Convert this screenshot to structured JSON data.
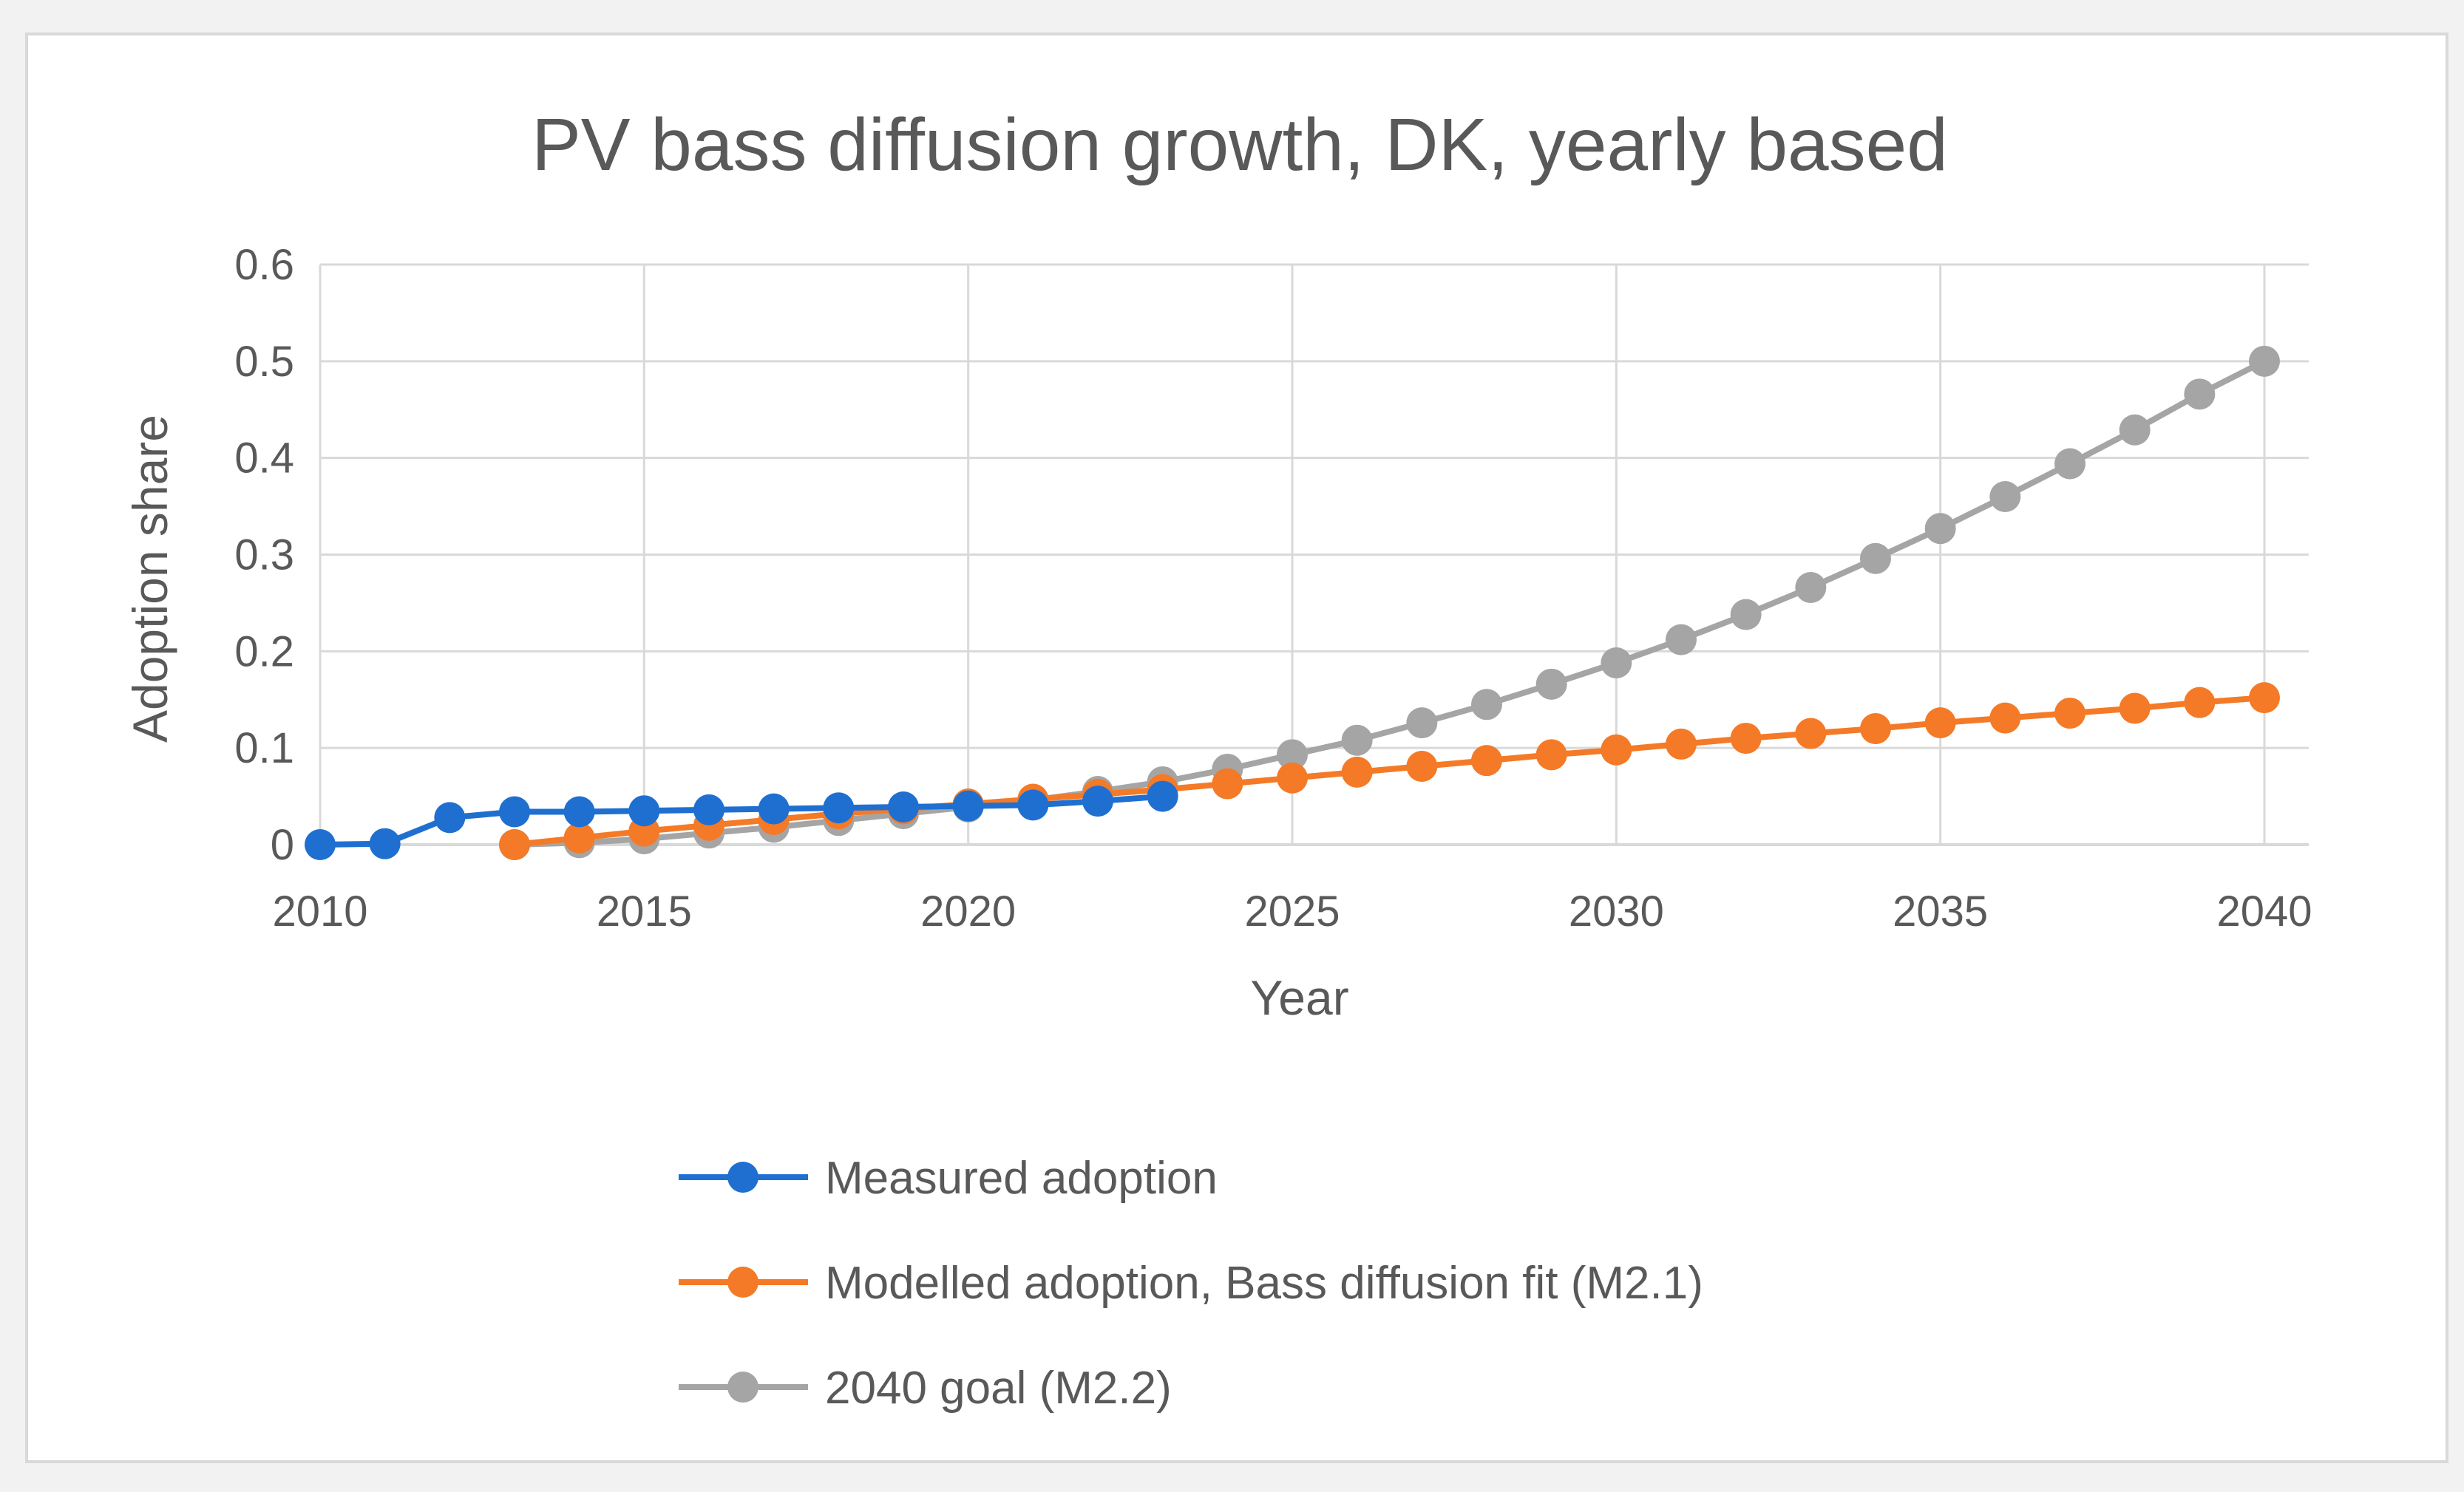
{
  "chart_data": {
    "type": "line",
    "title": "PV bass diffusion growth, DK, yearly based",
    "xlabel": "Year",
    "ylabel": "Adoption share",
    "xlim": [
      2010,
      2040
    ],
    "ylim": [
      0,
      0.6
    ],
    "x_ticks": [
      "2010",
      "2015",
      "2020",
      "2025",
      "2030",
      "2035",
      "2040"
    ],
    "y_ticks": [
      "0",
      "0.1",
      "0.2",
      "0.3",
      "0.4",
      "0.5",
      "0.6"
    ],
    "grid": true,
    "legend_position": "bottom",
    "series": [
      {
        "name": "Measured adoption",
        "color": "#1f6fd1",
        "x": [
          2010,
          2011,
          2012,
          2013,
          2014,
          2015,
          2016,
          2017,
          2018,
          2019,
          2020,
          2021,
          2022,
          2023
        ],
        "values": [
          0.0,
          0.001,
          0.028,
          0.034,
          0.034,
          0.035,
          0.036,
          0.037,
          0.038,
          0.039,
          0.04,
          0.041,
          0.045,
          0.05
        ]
      },
      {
        "name": "Modelled adoption, Bass diffusion fit (M2.1)",
        "color": "#f47a27",
        "x": [
          2013,
          2014,
          2015,
          2016,
          2017,
          2018,
          2019,
          2020,
          2021,
          2022,
          2023,
          2024,
          2025,
          2026,
          2027,
          2028,
          2029,
          2030,
          2031,
          2032,
          2033,
          2034,
          2035,
          2036,
          2037,
          2038,
          2039,
          2040
        ],
        "values": [
          0.0,
          0.007,
          0.014,
          0.02,
          0.026,
          0.032,
          0.037,
          0.042,
          0.047,
          0.052,
          0.057,
          0.063,
          0.069,
          0.075,
          0.081,
          0.087,
          0.093,
          0.098,
          0.104,
          0.11,
          0.115,
          0.12,
          0.126,
          0.131,
          0.136,
          0.141,
          0.147,
          0.152
        ]
      },
      {
        "name": "2040 goal (M2.2)",
        "color": "#a5a5a5",
        "x": [
          2013,
          2014,
          2015,
          2016,
          2017,
          2018,
          2019,
          2020,
          2021,
          2022,
          2023,
          2024,
          2025,
          2026,
          2027,
          2028,
          2029,
          2030,
          2031,
          2032,
          2033,
          2034,
          2035,
          2036,
          2037,
          2038,
          2039,
          2040
        ],
        "values": [
          0.0,
          0.002,
          0.006,
          0.012,
          0.018,
          0.025,
          0.032,
          0.039,
          0.046,
          0.055,
          0.065,
          0.078,
          0.093,
          0.108,
          0.126,
          0.145,
          0.166,
          0.188,
          0.212,
          0.238,
          0.266,
          0.296,
          0.327,
          0.36,
          0.394,
          0.429,
          0.466,
          0.5
        ]
      }
    ]
  }
}
